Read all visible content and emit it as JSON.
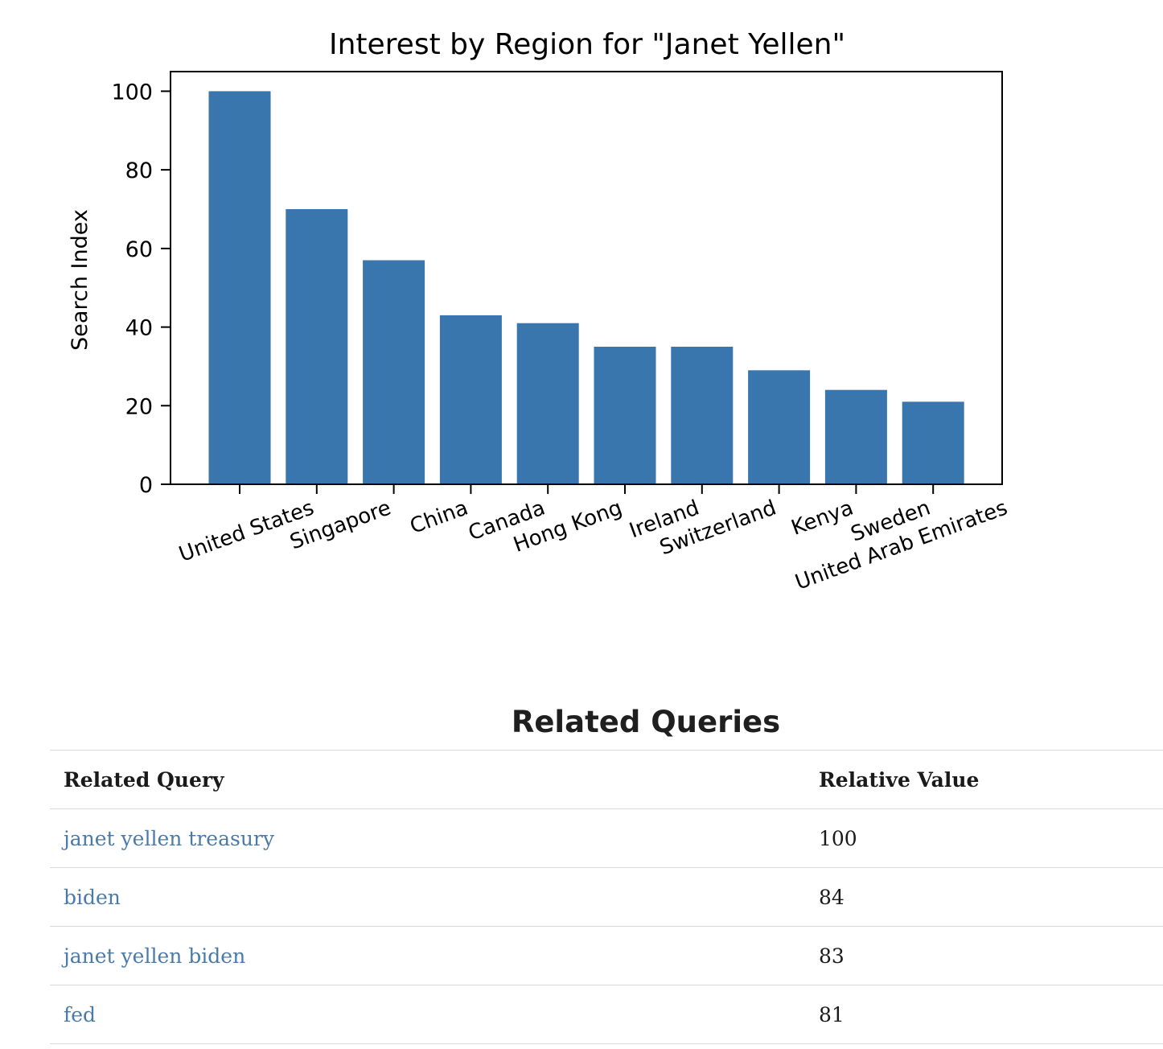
{
  "chart_data": {
    "type": "bar",
    "title": "Interest by Region for \"Janet Yellen\"",
    "xlabel": "",
    "ylabel": "Search Index",
    "categories": [
      "United States",
      "Singapore",
      "China",
      "Canada",
      "Hong Kong",
      "Ireland",
      "Switzerland",
      "Kenya",
      "Sweden",
      "United Arab Emirates"
    ],
    "values": [
      100,
      70,
      57,
      43,
      41,
      35,
      35,
      29,
      24,
      21
    ],
    "ylim": [
      0,
      105
    ],
    "yticks": [
      0,
      20,
      40,
      60,
      80,
      100
    ],
    "grid": false,
    "bar_color": "#3a76ae"
  },
  "related": {
    "title": "Related Queries",
    "headers": {
      "query": "Related Query",
      "value": "Relative Value"
    },
    "rows": [
      {
        "query": "janet yellen treasury",
        "value": "100"
      },
      {
        "query": "biden",
        "value": "84"
      },
      {
        "query": "janet yellen biden",
        "value": "83"
      },
      {
        "query": "fed",
        "value": "81"
      }
    ],
    "link_color": "#4a7aa8"
  }
}
